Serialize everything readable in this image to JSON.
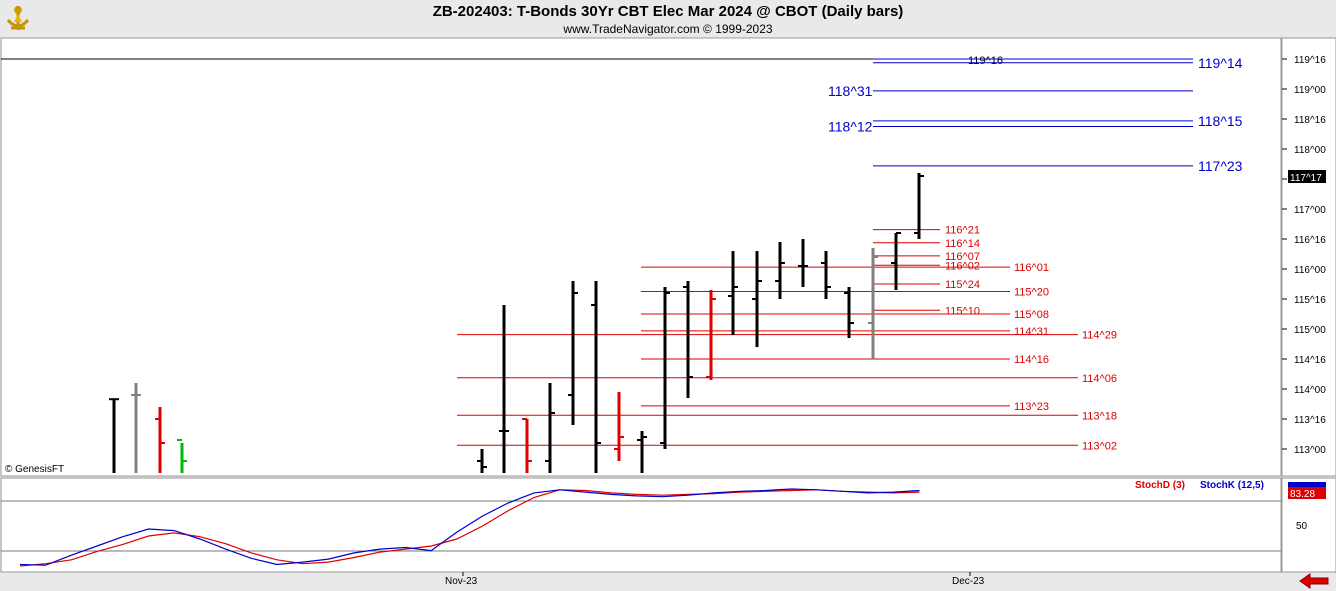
{
  "header": {
    "title": "ZB-202403:  T-Bonds 30Yr CBT Elec Mar 2024 @ CBOT  (Daily bars)",
    "subtitle": "www.TradeNavigator.com © 1999-2023"
  },
  "watermark": "© GenesisFT",
  "colors": {
    "support": "#dd0000",
    "resistance": "#0000cc",
    "bar": "#000000",
    "bar_gray": "#808080",
    "bar_red": "#dd0000",
    "bar_green": "#00bb00",
    "current_price_bg": "#000000"
  },
  "chart_data": [
    {
      "type": "ohlc",
      "axis_ticks": [
        "119^16",
        "119^00",
        "118^16",
        "118^00",
        "117^16",
        "117^00",
        "116^16",
        "116^00",
        "115^16",
        "115^00",
        "114^16",
        "114^00",
        "113^16",
        "113^00"
      ],
      "x_ticks": [
        "Nov-23",
        "Dec-23"
      ],
      "current_price": "117^17",
      "blue_levels": [
        {
          "label": "119^16",
          "value": 119.5,
          "label_side": "left"
        },
        {
          "label": "119^14",
          "value": 119.4375,
          "label_side": "right"
        },
        {
          "label": "118^31",
          "value": 118.96875,
          "label_side": "left"
        },
        {
          "label": "118^15",
          "value": 118.46875,
          "label_side": "right"
        },
        {
          "label": "118^12",
          "value": 118.375,
          "label_side": "left"
        },
        {
          "label": "117^23",
          "value": 117.71875,
          "label_side": "right"
        }
      ],
      "red_levels": [
        {
          "label": "116^21",
          "value": 116.65625
        },
        {
          "label": "116^14",
          "value": 116.4375
        },
        {
          "label": "116^07",
          "value": 116.21875
        },
        {
          "label": "116^02",
          "value": 116.0625
        },
        {
          "label": "116^01",
          "value": 116.03125
        },
        {
          "label": "115^24",
          "value": 115.75
        },
        {
          "label": "115^20",
          "value": 115.625
        },
        {
          "label": "115^10",
          "value": 115.3125
        },
        {
          "label": "115^08",
          "value": 115.25
        },
        {
          "label": "114^31",
          "value": 114.96875
        },
        {
          "label": "114^29",
          "value": 114.90625
        },
        {
          "label": "114^16",
          "value": 114.5
        },
        {
          "label": "114^06",
          "value": 114.1875
        },
        {
          "label": "113^23",
          "value": 113.71875
        },
        {
          "label": "113^18",
          "value": 113.5625
        },
        {
          "label": "113^02",
          "value": 113.0625
        }
      ],
      "bars": [
        {
          "color": "black",
          "o": 113.83,
          "h": 113.83,
          "l": 112.6,
          "c": 113.83
        },
        {
          "color": "gray",
          "o": 113.9,
          "h": 114.1,
          "l": 112.6,
          "c": 113.9
        },
        {
          "color": "red",
          "o": 113.5,
          "h": 113.7,
          "l": 112.6,
          "c": 113.1
        },
        {
          "color": "green",
          "o": 113.15,
          "h": 113.1,
          "l": 112.6,
          "c": 112.8
        },
        {
          "color": "black",
          "o": 112.8,
          "h": 113,
          "l": 112.6,
          "c": 112.7
        },
        {
          "color": "black",
          "o": 113.3,
          "h": 115.4,
          "l": 112.6,
          "c": 113.3
        },
        {
          "color": "red",
          "o": 113.5,
          "h": 113.5,
          "l": 112.6,
          "c": 112.8
        },
        {
          "color": "black",
          "o": 112.8,
          "h": 114.1,
          "l": 112.6,
          "c": 113.6
        },
        {
          "color": "black",
          "o": 113.9,
          "h": 115.8,
          "l": 113.4,
          "c": 115.6
        },
        {
          "color": "black",
          "o": 115.4,
          "h": 115.8,
          "l": 112.6,
          "c": 113.1
        },
        {
          "color": "red",
          "o": 113,
          "h": 113.95,
          "l": 112.8,
          "c": 113.2
        },
        {
          "color": "black",
          "o": 113.15,
          "h": 113.3,
          "l": 112.6,
          "c": 113.2
        },
        {
          "color": "black",
          "o": 113.1,
          "h": 115.7,
          "l": 113,
          "c": 115.6
        },
        {
          "color": "black",
          "o": 115.7,
          "h": 115.8,
          "l": 113.85,
          "c": 114.2
        },
        {
          "color": "red",
          "o": 114.2,
          "h": 115.65,
          "l": 114.15,
          "c": 115.5
        },
        {
          "color": "black",
          "o": 115.55,
          "h": 116.3,
          "l": 114.9,
          "c": 115.7
        },
        {
          "color": "black",
          "o": 115.5,
          "h": 116.3,
          "l": 114.7,
          "c": 115.8
        },
        {
          "color": "black",
          "o": 115.8,
          "h": 116.45,
          "l": 115.5,
          "c": 116.1
        },
        {
          "color": "black",
          "o": 116.05,
          "h": 116.5,
          "l": 115.7,
          "c": 116.05
        },
        {
          "color": "black",
          "o": 116.1,
          "h": 116.3,
          "l": 115.5,
          "c": 115.7
        },
        {
          "color": "black",
          "o": 115.6,
          "h": 115.7,
          "l": 114.85,
          "c": 115.1
        },
        {
          "color": "gray",
          "o": 115.1,
          "h": 116.35,
          "l": 114.5,
          "c": 116.2
        },
        {
          "color": "black",
          "o": 116.1,
          "h": 116.6,
          "l": 115.65,
          "c": 116.6
        },
        {
          "color": "black",
          "o": 116.6,
          "h": 117.6,
          "l": 116.5,
          "c": 117.55
        }
      ]
    },
    {
      "type": "line",
      "series": [
        {
          "name": "StochD (3)",
          "color": "#dd0000",
          "values": [
            0,
            3,
            8,
            19,
            28,
            39,
            43,
            38,
            29,
            17,
            8,
            3,
            5,
            11,
            18,
            22,
            26,
            35,
            52,
            72,
            89,
            99,
            98,
            95,
            93,
            92,
            93,
            94,
            96,
            97,
            98,
            99,
            97,
            96,
            95,
            96
          ]
        },
        {
          "name": "StochK (12,5)",
          "color": "#0000cc",
          "values": [
            2,
            1,
            14,
            26,
            38,
            48,
            46,
            35,
            22,
            10,
            2,
            5,
            9,
            17,
            22,
            24,
            20,
            44,
            65,
            82,
            95,
            99,
            96,
            93,
            91,
            90,
            92,
            95,
            97,
            98,
            100,
            99,
            97,
            95,
            96,
            98
          ]
        }
      ],
      "ytick": "50",
      "last_value": "83.28"
    }
  ]
}
